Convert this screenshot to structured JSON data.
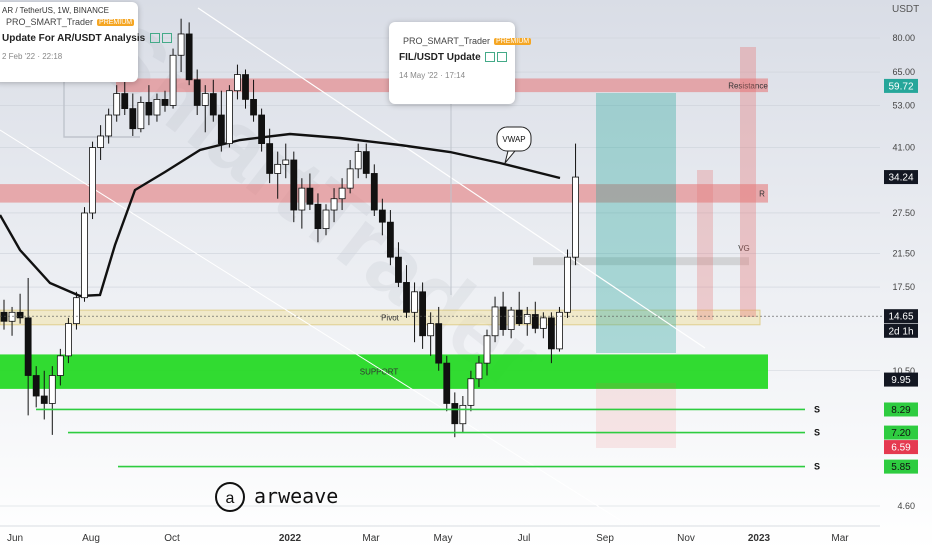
{
  "header": {
    "symbol": "AR / TetherUS, 1W, BINANCE"
  },
  "currency": "USDT",
  "popups": [
    {
      "author": "PRO_SMART_Trader",
      "title": "Update For AR/USDT Analysis",
      "date": "2 Feb '22 · 22:18",
      "badge": "PREMIUM"
    },
    {
      "author": "PRO_SMART_Trader",
      "title": "FIL/USDT Update",
      "date": "14 May '22 · 17:14",
      "badge": "PREMIUM"
    }
  ],
  "logo_text": "arweave",
  "watermark": "SmartTrader",
  "chart_data": {
    "type": "candlestick",
    "y_scale": "log",
    "y_ticks": [
      "80.00",
      "65.00",
      "53.00",
      "41.00",
      "27.50",
      "21.50",
      "17.50",
      "10.50",
      "4.60"
    ],
    "x_ticks": [
      "Jun",
      "Aug",
      "Oct",
      "2022",
      "Mar",
      "May",
      "Jul",
      "Sep",
      "Nov",
      "2023",
      "Mar"
    ],
    "price_labels": [
      {
        "text": "59.72",
        "value": 59.72,
        "color": "#26a69a"
      },
      {
        "text": "34.24",
        "value": 34.24,
        "color": "#131722"
      },
      {
        "text": "14.65",
        "value": 14.65,
        "color": "#131722"
      },
      {
        "text": "2d 1h",
        "value": 13.4,
        "color": "#131722"
      },
      {
        "text": "9.95",
        "value": 9.95,
        "color": "#131722"
      },
      {
        "text": "8.29",
        "value": 8.29,
        "color": "#2ecc40"
      },
      {
        "text": "7.20",
        "value": 7.2,
        "color": "#2ecc40"
      },
      {
        "text": "6.59",
        "value": 6.59,
        "color": "#e53950"
      },
      {
        "text": "5.85",
        "value": 5.85,
        "color": "#2ecc40"
      }
    ],
    "zones": [
      {
        "label": "Resistance",
        "low": 57.5,
        "high": 62.5,
        "color": "#e57373"
      },
      {
        "label": "R",
        "low": 29.3,
        "high": 32.8,
        "color": "#e57373"
      },
      {
        "label": "VG",
        "low": 20.0,
        "high": 21.0,
        "color": "#bdbdbd"
      },
      {
        "label": "Pivot",
        "low": 13.9,
        "high": 15.2,
        "color": "#f2e3a8"
      },
      {
        "label": "SUPPORT",
        "low": 9.4,
        "high": 11.6,
        "color": "#26d926"
      }
    ],
    "support_lines": [
      {
        "label": "S",
        "value": 8.29
      },
      {
        "label": "S",
        "value": 7.2
      },
      {
        "label": "S",
        "value": 5.85
      }
    ],
    "annotations": [
      {
        "text": "VWAP"
      }
    ],
    "candles": [
      [
        15.0,
        16.2,
        13.5,
        14.2
      ],
      [
        14.2,
        15.5,
        13.0,
        15.0
      ],
      [
        15.0,
        16.8,
        14.0,
        14.5
      ],
      [
        14.5,
        18.5,
        8.0,
        10.2
      ],
      [
        10.2,
        10.8,
        8.4,
        9.0
      ],
      [
        9.0,
        10.5,
        7.8,
        8.6
      ],
      [
        8.6,
        10.8,
        7.1,
        10.2
      ],
      [
        10.2,
        12.0,
        9.6,
        11.5
      ],
      [
        11.5,
        14.5,
        11.0,
        14.0
      ],
      [
        14.0,
        17.0,
        13.5,
        16.4
      ],
      [
        16.4,
        28.5,
        16.0,
        27.5
      ],
      [
        27.5,
        42.5,
        26.5,
        41.0
      ],
      [
        41.0,
        47.0,
        38.0,
        44.0
      ],
      [
        44.0,
        52.0,
        42.0,
        50.0
      ],
      [
        50.0,
        60.0,
        48.0,
        57.0
      ],
      [
        57.0,
        66.0,
        50.0,
        52.0
      ],
      [
        52.0,
        57.0,
        44.0,
        46.0
      ],
      [
        46.0,
        56.0,
        45.0,
        54.0
      ],
      [
        54.0,
        60.0,
        47.0,
        50.0
      ],
      [
        50.0,
        57.0,
        48.0,
        55.0
      ],
      [
        55.0,
        58.0,
        51.0,
        53.0
      ],
      [
        53.0,
        75.0,
        52.0,
        72.0
      ],
      [
        72.0,
        90.0,
        65.0,
        82.0
      ],
      [
        82.0,
        88.0,
        60.0,
        62.0
      ],
      [
        62.0,
        66.0,
        50.0,
        53.0
      ],
      [
        53.0,
        60.0,
        45.0,
        57.0
      ],
      [
        57.0,
        62.0,
        48.0,
        50.0
      ],
      [
        50.0,
        58.0,
        40.0,
        42.0
      ],
      [
        42.0,
        60.0,
        41.0,
        58.0
      ],
      [
        58.0,
        68.0,
        55.0,
        64.0
      ],
      [
        64.0,
        66.0,
        52.0,
        55.0
      ],
      [
        55.0,
        62.0,
        48.0,
        50.0
      ],
      [
        50.0,
        52.0,
        40.0,
        42.0
      ],
      [
        42.0,
        46.0,
        33.0,
        35.0
      ],
      [
        35.0,
        40.0,
        30.0,
        37.0
      ],
      [
        37.0,
        42.0,
        34.0,
        38.0
      ],
      [
        38.0,
        40.0,
        26.0,
        28.0
      ],
      [
        28.0,
        34.0,
        25.0,
        32.0
      ],
      [
        32.0,
        35.0,
        28.0,
        29.0
      ],
      [
        29.0,
        31.0,
        23.0,
        25.0
      ],
      [
        25.0,
        29.0,
        24.0,
        28.0
      ],
      [
        28.0,
        32.0,
        26.0,
        30.0
      ],
      [
        30.0,
        34.0,
        28.0,
        32.0
      ],
      [
        32.0,
        38.0,
        31.0,
        36.0
      ],
      [
        36.0,
        42.0,
        34.0,
        40.0
      ],
      [
        40.0,
        42.0,
        34.0,
        35.0
      ],
      [
        35.0,
        37.0,
        27.0,
        28.0
      ],
      [
        28.0,
        30.0,
        24.0,
        26.0
      ],
      [
        26.0,
        28.0,
        20.0,
        21.0
      ],
      [
        21.0,
        23.0,
        17.5,
        18.0
      ],
      [
        18.0,
        20.0,
        14.5,
        15.0
      ],
      [
        15.0,
        18.0,
        12.5,
        17.0
      ],
      [
        17.0,
        18.0,
        12.0,
        13.0
      ],
      [
        13.0,
        15.0,
        11.5,
        14.0
      ],
      [
        14.0,
        15.5,
        10.5,
        11.0
      ],
      [
        11.0,
        11.5,
        8.2,
        8.6
      ],
      [
        8.6,
        9.2,
        7.0,
        7.6
      ],
      [
        7.6,
        9.0,
        7.2,
        8.5
      ],
      [
        8.5,
        10.5,
        8.2,
        10.0
      ],
      [
        10.0,
        11.5,
        9.5,
        11.0
      ],
      [
        11.0,
        13.5,
        10.2,
        13.0
      ],
      [
        13.0,
        16.5,
        12.5,
        15.5
      ],
      [
        15.5,
        17.0,
        13.0,
        13.5
      ],
      [
        13.5,
        15.5,
        12.8,
        15.2
      ],
      [
        15.2,
        17.0,
        13.8,
        14.0
      ],
      [
        14.0,
        15.5,
        13.0,
        14.8
      ],
      [
        14.8,
        16.0,
        13.2,
        13.6
      ],
      [
        13.6,
        15.0,
        12.8,
        14.5
      ],
      [
        14.5,
        15.0,
        11.0,
        12.0
      ],
      [
        12.0,
        15.5,
        11.8,
        15.0
      ],
      [
        15.0,
        22.0,
        14.5,
        21.0
      ],
      [
        21.0,
        42.0,
        20.0,
        34.24
      ]
    ]
  }
}
